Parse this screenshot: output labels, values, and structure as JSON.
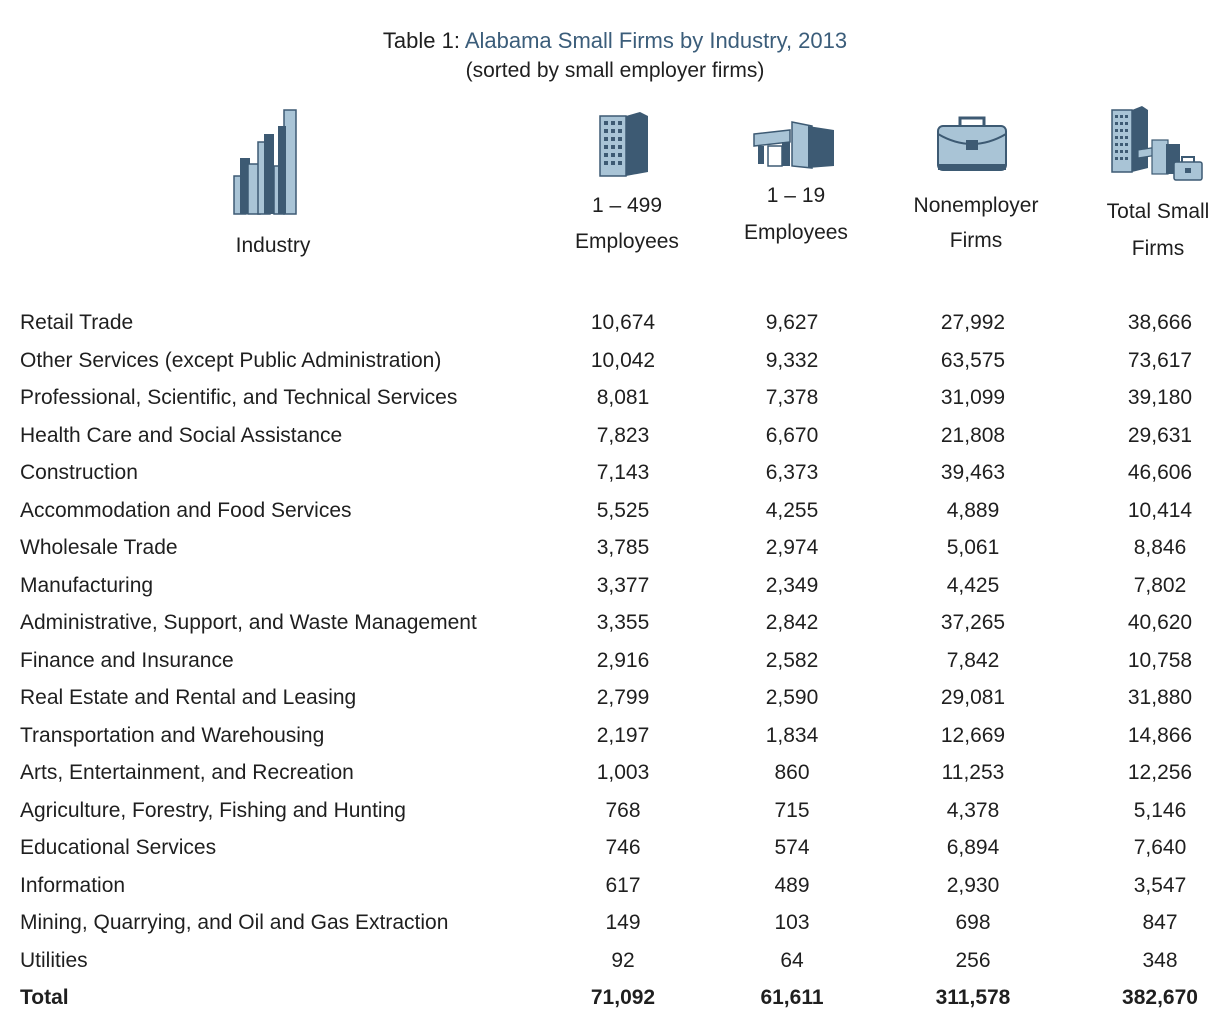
{
  "title": {
    "prefix": "Table 1: ",
    "main": "Alabama Small Firms by Industry, 2013",
    "subtitle": "(sorted by small employer firms)"
  },
  "headers": {
    "industry": "Industry",
    "col1_line1": "1 – 499",
    "col1_line2": "Employees",
    "col2_line1": "1 – 19",
    "col2_line2": "Employees",
    "col3_line1": "Nonemployer",
    "col3_line2": "Firms",
    "col4_line1": "Total Small",
    "col4_line2": "Firms"
  },
  "icons": {
    "industry": "bar-chart-icon",
    "col1": "office-building-icon",
    "col2": "storefront-icon",
    "col3": "briefcase-icon",
    "col4": "buildings-briefcase-icon"
  },
  "colors": {
    "icon_dark": "#3d5a73",
    "icon_light": "#a9c4d6",
    "title_accent": "#3b5d7a"
  },
  "chart_data": {
    "type": "table",
    "title": "Table 1: Alabama Small Firms by Industry, 2013",
    "subtitle": "(sorted by small employer firms)",
    "columns": [
      "Industry",
      "1 – 499 Employees",
      "1 – 19 Employees",
      "Nonemployer Firms",
      "Total Small Firms"
    ],
    "rows": [
      [
        "Retail Trade",
        "10,674",
        "9,627",
        "27,992",
        "38,666"
      ],
      [
        "Other Services (except Public Administration)",
        "10,042",
        "9,332",
        "63,575",
        "73,617"
      ],
      [
        "Professional, Scientific, and Technical Services",
        "8,081",
        "7,378",
        "31,099",
        "39,180"
      ],
      [
        "Health Care and Social Assistance",
        "7,823",
        "6,670",
        "21,808",
        "29,631"
      ],
      [
        "Construction",
        "7,143",
        "6,373",
        "39,463",
        "46,606"
      ],
      [
        "Accommodation and Food Services",
        "5,525",
        "4,255",
        "4,889",
        "10,414"
      ],
      [
        "Wholesale Trade",
        "3,785",
        "2,974",
        "5,061",
        "8,846"
      ],
      [
        "Manufacturing",
        "3,377",
        "2,349",
        "4,425",
        "7,802"
      ],
      [
        "Administrative, Support, and Waste Management",
        "3,355",
        "2,842",
        "37,265",
        "40,620"
      ],
      [
        "Finance and Insurance",
        "2,916",
        "2,582",
        "7,842",
        "10,758"
      ],
      [
        "Real Estate and Rental and Leasing",
        "2,799",
        "2,590",
        "29,081",
        "31,880"
      ],
      [
        "Transportation and Warehousing",
        "2,197",
        "1,834",
        "12,669",
        "14,866"
      ],
      [
        "Arts, Entertainment, and Recreation",
        "1,003",
        "860",
        "11,253",
        "12,256"
      ],
      [
        "Agriculture, Forestry, Fishing and Hunting",
        "768",
        "715",
        "4,378",
        "5,146"
      ],
      [
        "Educational Services",
        "746",
        "574",
        "6,894",
        "7,640"
      ],
      [
        "Information",
        "617",
        "489",
        "2,930",
        "3,547"
      ],
      [
        "Mining, Quarrying, and Oil and Gas Extraction",
        "149",
        "103",
        "698",
        "847"
      ],
      [
        "Utilities",
        "92",
        "64",
        "256",
        "348"
      ]
    ],
    "total": [
      "Total",
      "71,092",
      "61,611",
      "311,578",
      "382,670"
    ]
  }
}
